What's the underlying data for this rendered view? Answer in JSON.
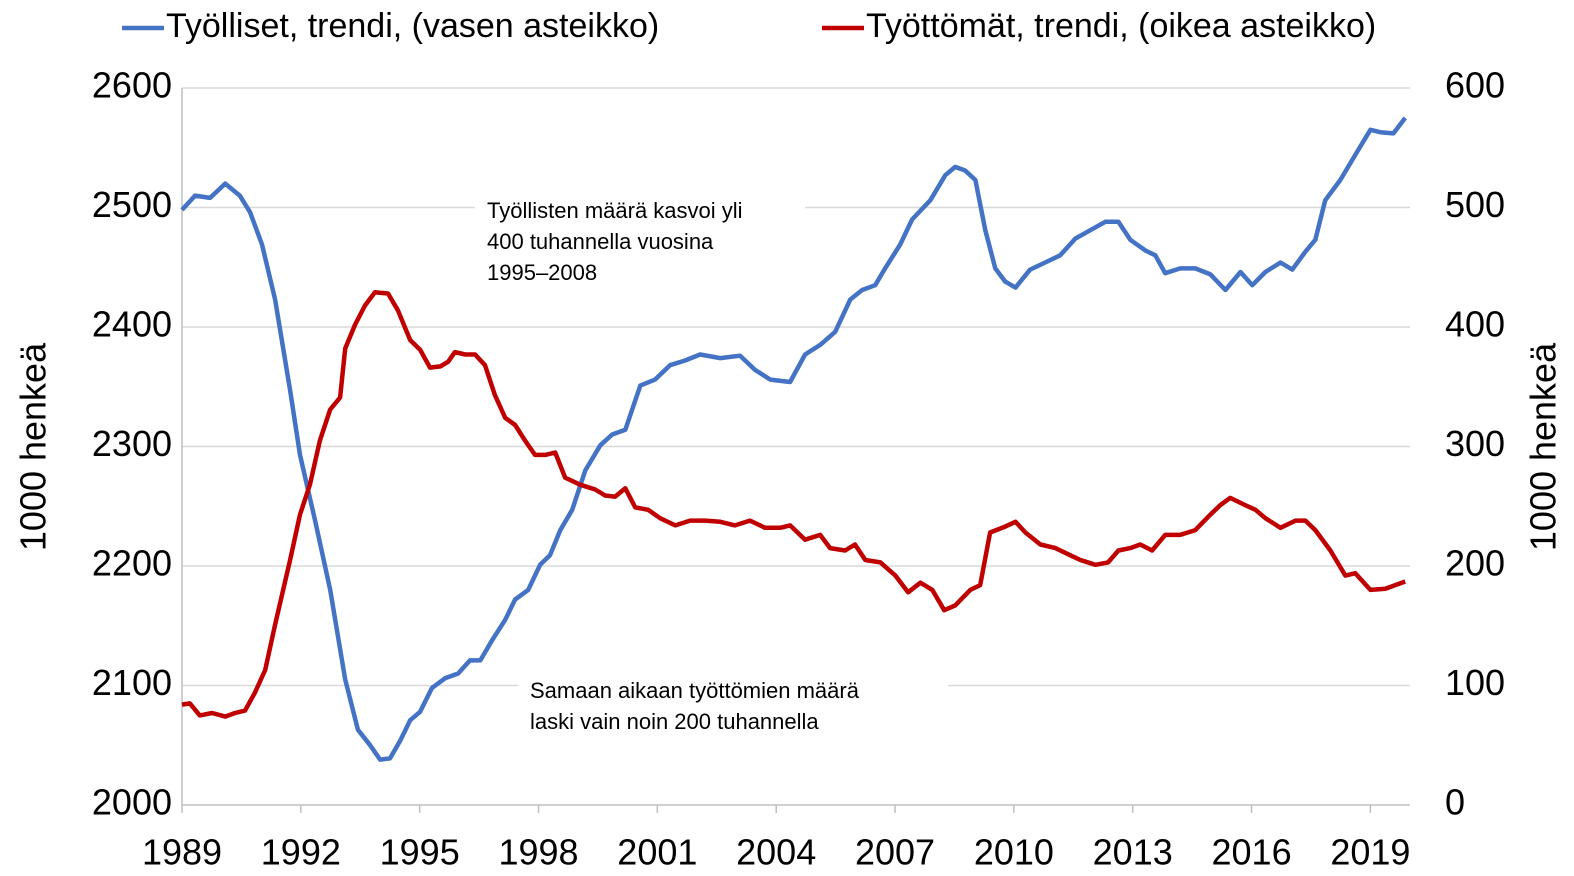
{
  "chart_data": {
    "type": "line",
    "legend": "top",
    "grid": true,
    "y_label": "1000 henkeä",
    "y2_label": "1000 henkeä",
    "xlim": [
      1989,
      2020
    ],
    "xticks": [
      1989,
      1992,
      1995,
      1998,
      2001,
      2004,
      2007,
      2010,
      2013,
      2016,
      2019
    ],
    "ylim": [
      2000,
      2600
    ],
    "yticks": [
      2000,
      2100,
      2200,
      2300,
      2400,
      2500,
      2600
    ],
    "y2lim": [
      0,
      600
    ],
    "y2ticks": [
      0,
      100,
      200,
      300,
      400,
      500,
      600
    ],
    "annotations": [
      {
        "lines": [
          "Työllisten määrä kasvoi yli",
          "400 tuhannella vuosina",
          "1995–2008"
        ],
        "color": "#4472c4"
      },
      {
        "lines": [
          "Samaan aikaan työttömien määrä",
          "laski vain noin 200 tuhannella"
        ],
        "color": "#c00000"
      }
    ],
    "series": [
      {
        "name": "Työlliset, trendi, (vasen asteikko)",
        "color": "#4472c4",
        "axis": "y",
        "x": [
          1989.0,
          1989.33,
          1989.71,
          1990.09,
          1990.46,
          1990.72,
          1991.02,
          1991.35,
          1991.73,
          1991.98,
          1992.36,
          1992.74,
          1993.12,
          1993.44,
          1993.75,
          1994.0,
          1994.25,
          1994.51,
          1994.76,
          1995.01,
          1995.31,
          1995.64,
          1995.97,
          1996.27,
          1996.53,
          1996.83,
          1997.16,
          1997.41,
          1997.74,
          1998.04,
          1998.29,
          1998.55,
          1998.85,
          1999.18,
          1999.56,
          1999.86,
          2000.19,
          2000.57,
          2000.94,
          2001.32,
          2001.7,
          2002.08,
          2002.59,
          2003.09,
          2003.47,
          2003.85,
          2004.35,
          2004.73,
          2005.11,
          2005.49,
          2005.87,
          2006.17,
          2006.5,
          2006.75,
          2007.13,
          2007.43,
          2007.89,
          2008.27,
          2008.52,
          2008.77,
          2009.03,
          2009.28,
          2009.53,
          2009.78,
          2010.04,
          2010.41,
          2010.79,
          2011.17,
          2011.55,
          2011.93,
          2012.31,
          2012.64,
          2012.94,
          2013.32,
          2013.57,
          2013.82,
          2014.2,
          2014.58,
          2014.96,
          2015.34,
          2015.72,
          2016.02,
          2016.35,
          2016.73,
          2017.03,
          2017.36,
          2017.61,
          2017.86,
          2018.24,
          2018.62,
          2019.0,
          2019.25,
          2019.58,
          2019.88
        ],
        "values": [
          2498,
          2510,
          2508,
          2520,
          2510,
          2496,
          2469,
          2423,
          2347,
          2293,
          2238,
          2180,
          2105,
          2063,
          2050,
          2038,
          2039,
          2054,
          2071,
          2078,
          2098,
          2106,
          2110,
          2121,
          2121,
          2138,
          2155,
          2172,
          2180,
          2201,
          2209,
          2230,
          2247,
          2280,
          2301,
          2310,
          2314,
          2351,
          2356,
          2368,
          2372,
          2377,
          2374,
          2376,
          2364,
          2356,
          2354,
          2377,
          2385,
          2396,
          2423,
          2431,
          2435,
          2449,
          2469,
          2490,
          2506,
          2527,
          2534,
          2531,
          2523,
          2481,
          2449,
          2438,
          2433,
          2448,
          2454,
          2460,
          2474,
          2481,
          2488,
          2488,
          2473,
          2464,
          2460,
          2445,
          2449,
          2449,
          2444,
          2431,
          2446,
          2435,
          2446,
          2454,
          2448,
          2463,
          2473,
          2506,
          2523,
          2544,
          2565,
          2563,
          2562,
          2575
        ]
      },
      {
        "name": "Työttömät, trendi, (oikea asteikko)",
        "color": "#c00000",
        "axis": "y2",
        "x": [
          1989.0,
          1989.2,
          1989.45,
          1989.76,
          1990.09,
          1990.34,
          1990.59,
          1990.84,
          1991.1,
          1991.35,
          1991.73,
          1991.98,
          1992.23,
          1992.48,
          1992.74,
          1992.99,
          1993.12,
          1993.37,
          1993.62,
          1993.87,
          1994.2,
          1994.45,
          1994.76,
          1995.01,
          1995.26,
          1995.52,
          1995.72,
          1995.89,
          1996.15,
          1996.4,
          1996.65,
          1996.9,
          1997.16,
          1997.41,
          1997.66,
          1997.91,
          1998.17,
          1998.42,
          1998.67,
          1999.05,
          1999.43,
          1999.68,
          1999.93,
          2000.19,
          2000.44,
          2000.77,
          2001.07,
          2001.45,
          2001.83,
          2002.21,
          2002.59,
          2002.96,
          2003.34,
          2003.72,
          2004.1,
          2004.35,
          2004.73,
          2005.11,
          2005.36,
          2005.74,
          2005.99,
          2006.25,
          2006.63,
          2007.01,
          2007.33,
          2007.64,
          2007.94,
          2008.24,
          2008.52,
          2008.9,
          2009.15,
          2009.4,
          2009.78,
          2010.04,
          2010.29,
          2010.67,
          2011.05,
          2011.42,
          2011.68,
          2012.06,
          2012.38,
          2012.64,
          2012.94,
          2013.19,
          2013.49,
          2013.82,
          2014.2,
          2014.58,
          2014.96,
          2015.21,
          2015.46,
          2015.84,
          2016.1,
          2016.35,
          2016.73,
          2017.11,
          2017.36,
          2017.61,
          2017.99,
          2018.37,
          2018.62,
          2019.0,
          2019.38,
          2019.63,
          2019.88
        ],
        "values": [
          84,
          85,
          75,
          77,
          74,
          77,
          79,
          94,
          113,
          151,
          205,
          243,
          268,
          305,
          331,
          341,
          382,
          402,
          418,
          429,
          428,
          414,
          389,
          381,
          366,
          367,
          371,
          379,
          377,
          377,
          368,
          343,
          324,
          318,
          305,
          293,
          293,
          295,
          274,
          268,
          264,
          259,
          258,
          265,
          249,
          247,
          240,
          234,
          238,
          238,
          237,
          234,
          238,
          232,
          232,
          234,
          222,
          226,
          215,
          213,
          218,
          205,
          203,
          192,
          178,
          186,
          180,
          163,
          167,
          180,
          184,
          228,
          233,
          237,
          228,
          218,
          215,
          209,
          205,
          201,
          203,
          213,
          215,
          218,
          213,
          226,
          226,
          230,
          243,
          251,
          257,
          251,
          247,
          240,
          232,
          238,
          238,
          230,
          213,
          192,
          194,
          180,
          181,
          184,
          187
        ]
      }
    ]
  }
}
